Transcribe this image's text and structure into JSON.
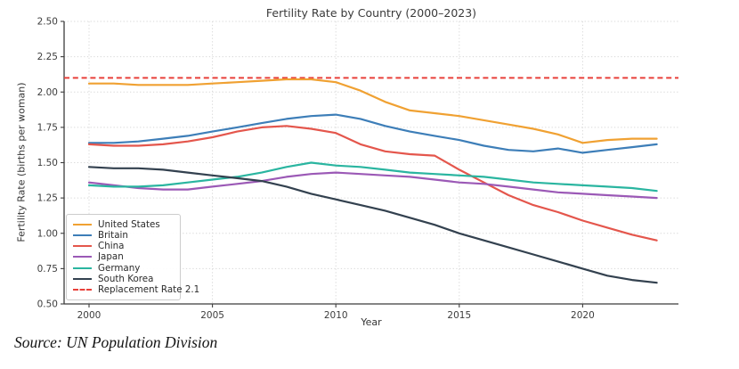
{
  "source_note": "Source: UN Population Division",
  "chart_data": {
    "type": "line",
    "title": "Fertility Rate by Country (2000–2023)",
    "xlabel": "Year",
    "ylabel": "Fertility Rate (births per woman)",
    "ylim": [
      0.5,
      2.5
    ],
    "grid": "dotted",
    "legend_position": "lower-left",
    "x_years": [
      2000,
      2001,
      2002,
      2003,
      2004,
      2005,
      2006,
      2007,
      2008,
      2009,
      2010,
      2011,
      2012,
      2013,
      2014,
      2015,
      2016,
      2017,
      2018,
      2019,
      2020,
      2021,
      2022,
      2023
    ],
    "xticks": [
      {
        "value": 2000,
        "label": "2000"
      },
      {
        "value": 2005,
        "label": "2005"
      },
      {
        "value": 2010,
        "label": "2010"
      },
      {
        "value": 2015,
        "label": "2015"
      },
      {
        "value": 2020,
        "label": "2020"
      }
    ],
    "yticks": [
      {
        "value": 2.5,
        "label": "2.50"
      },
      {
        "value": 2.25,
        "label": "2.25"
      },
      {
        "value": 2.0,
        "label": "2.00"
      },
      {
        "value": 1.75,
        "label": "1.75"
      },
      {
        "value": 1.5,
        "label": "1.50"
      },
      {
        "value": 1.25,
        "label": "1.25"
      },
      {
        "value": 1.0,
        "label": "1.00"
      },
      {
        "value": 0.75,
        "label": "0.75"
      },
      {
        "value": 0.5,
        "label": "0.50"
      }
    ],
    "series": [
      {
        "name": "United States",
        "color": "#f0a132",
        "values": [
          2.06,
          2.06,
          2.05,
          2.05,
          2.05,
          2.06,
          2.07,
          2.08,
          2.09,
          2.09,
          2.07,
          2.01,
          1.93,
          1.87,
          1.85,
          1.83,
          1.8,
          1.77,
          1.74,
          1.7,
          1.64,
          1.66,
          1.67,
          1.67
        ]
      },
      {
        "name": "Britain",
        "color": "#3d7eb8",
        "values": [
          1.64,
          1.64,
          1.65,
          1.67,
          1.69,
          1.72,
          1.75,
          1.78,
          1.81,
          1.83,
          1.84,
          1.81,
          1.76,
          1.72,
          1.69,
          1.66,
          1.62,
          1.59,
          1.58,
          1.6,
          1.57,
          1.59,
          1.61,
          1.63
        ]
      },
      {
        "name": "China",
        "color": "#e4564c",
        "values": [
          1.63,
          1.62,
          1.62,
          1.63,
          1.65,
          1.68,
          1.72,
          1.75,
          1.76,
          1.74,
          1.71,
          1.63,
          1.58,
          1.56,
          1.55,
          1.45,
          1.36,
          1.27,
          1.2,
          1.15,
          1.09,
          1.04,
          0.99,
          0.95
        ]
      },
      {
        "name": "Japan",
        "color": "#9b59b6",
        "values": [
          1.36,
          1.34,
          1.32,
          1.31,
          1.31,
          1.33,
          1.35,
          1.37,
          1.4,
          1.42,
          1.43,
          1.42,
          1.41,
          1.4,
          1.38,
          1.36,
          1.35,
          1.33,
          1.31,
          1.29,
          1.28,
          1.27,
          1.26,
          1.25
        ]
      },
      {
        "name": "Germany",
        "color": "#2ab5a0",
        "values": [
          1.34,
          1.33,
          1.33,
          1.34,
          1.36,
          1.38,
          1.4,
          1.43,
          1.47,
          1.5,
          1.48,
          1.47,
          1.45,
          1.43,
          1.42,
          1.41,
          1.4,
          1.38,
          1.36,
          1.35,
          1.34,
          1.33,
          1.32,
          1.3
        ]
      },
      {
        "name": "South Korea",
        "color": "#33414f",
        "values": [
          1.47,
          1.46,
          1.46,
          1.45,
          1.43,
          1.41,
          1.39,
          1.37,
          1.33,
          1.28,
          1.24,
          1.2,
          1.16,
          1.11,
          1.06,
          1.0,
          0.95,
          0.9,
          0.85,
          0.8,
          0.75,
          0.7,
          0.67,
          0.65
        ]
      }
    ],
    "reference_line": {
      "label": "Replacement Rate 2.1",
      "value": 2.1,
      "color": "#e8403a",
      "style": "dashed"
    }
  }
}
